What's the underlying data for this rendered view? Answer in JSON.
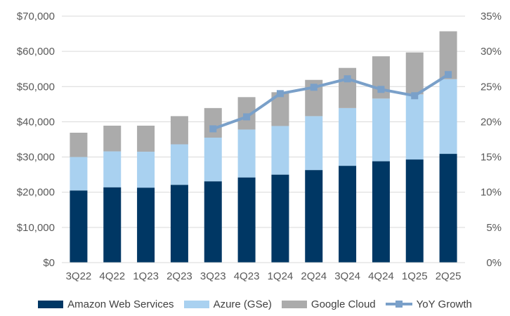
{
  "chart_data": {
    "type": "bar",
    "stacked": true,
    "categories": [
      "3Q22",
      "4Q22",
      "1Q23",
      "2Q23",
      "3Q23",
      "4Q23",
      "1Q24",
      "2Q24",
      "3Q24",
      "4Q24",
      "1Q25",
      "2Q25"
    ],
    "series": [
      {
        "name": "Amazon Web Services",
        "color": "#003764",
        "values": [
          20500,
          21400,
          21300,
          22100,
          23100,
          24200,
          25000,
          26300,
          27500,
          28800,
          29300,
          30900
        ]
      },
      {
        "name": "Azure (GSe)",
        "color": "#a9d1f0",
        "values": [
          9500,
          10200,
          10200,
          11500,
          12400,
          13600,
          13800,
          15300,
          16400,
          17800,
          18500,
          21200
        ]
      },
      {
        "name": "Google Cloud",
        "color": "#ababab",
        "values": [
          6900,
          7300,
          7400,
          8000,
          8400,
          9200,
          9600,
          10300,
          11400,
          12000,
          11900,
          13600
        ]
      }
    ],
    "line_series": {
      "name": "YoY Growth",
      "color": "#7aa0c9",
      "axis": "right",
      "values": [
        null,
        null,
        null,
        null,
        0.19,
        0.207,
        0.24,
        0.249,
        0.261,
        0.246,
        0.237,
        0.267
      ]
    },
    "y_left": {
      "range": [
        0,
        70000
      ],
      "ticks": [
        "$0",
        "$10,000",
        "$20,000",
        "$30,000",
        "$40,000",
        "$50,000",
        "$60,000",
        "$70,000"
      ]
    },
    "y_right": {
      "range": [
        0,
        0.35
      ],
      "ticks": [
        "0%",
        "5%",
        "10%",
        "15%",
        "20%",
        "25%",
        "30%",
        "35%"
      ]
    },
    "grid": true,
    "legend": "bottom"
  }
}
